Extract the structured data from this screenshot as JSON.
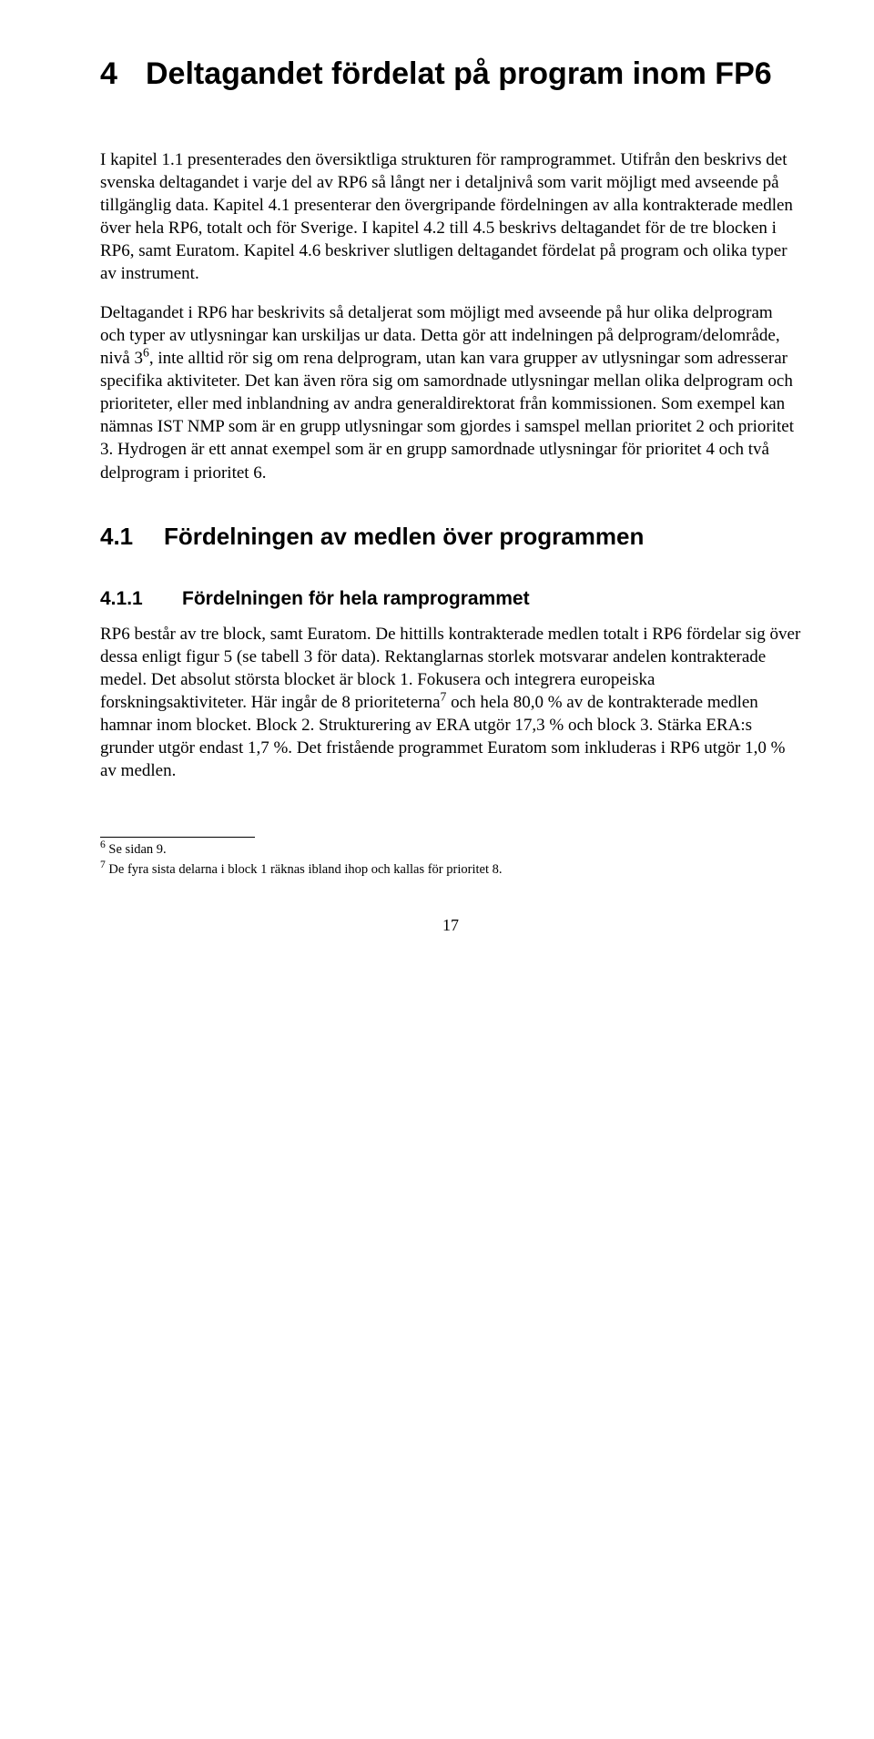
{
  "heading1": {
    "number": "4",
    "text": "Deltagandet fördelat på program inom FP6"
  },
  "paragraphs": {
    "p1": "I kapitel 1.1 presenterades den översiktliga strukturen för ramprogrammet. Utifrån den beskrivs det svenska deltagandet i varje del av RP6 så långt ner i detaljnivå som varit möjligt med avseende på tillgänglig data. Kapitel 4.1 presenterar den övergripande fördelningen av alla kontrakterade medlen över hela RP6, totalt och för Sverige. I kapitel 4.2 till 4.5 beskrivs deltagandet för de tre blocken i RP6, samt Euratom. Kapitel 4.6 beskriver slutligen deltagandet fördelat på program och olika typer av instrument.",
    "p2a": "Deltagandet i RP6 har beskrivits så detaljerat som möjligt med avseende på hur olika delprogram och typer av utlysningar kan urskiljas ur data. Detta gör att indelningen på delprogram/delområde, nivå 3",
    "p2b": ", inte alltid rör sig om rena delprogram, utan kan vara grupper av utlysningar som adresserar specifika aktiviteter. Det kan även röra sig om samordnade utlysningar mellan olika delprogram och prioriteter, eller med inblandning av andra generaldirektorat från kommissionen. Som exempel kan nämnas IST NMP som är en grupp utlysningar som gjordes i samspel mellan prioritet 2 och prioritet 3. Hydrogen är ett annat exempel som är en grupp samordnade utlysningar för prioritet 4 och två delprogram i prioritet 6.",
    "p3a": "RP6 består av tre block, samt Euratom. De hittills kontrakterade medlen totalt i RP6 fördelar sig över dessa enligt figur 5 (se tabell 3 för data). Rektanglarnas storlek motsvarar andelen kontrakterade medel. Det absolut största blocket är block 1. Fokusera och integrera europeiska forskningsaktiviteter. Här ingår de 8 prioriteterna",
    "p3b": " och hela 80,0 % av de kontrakterade medlen hamnar inom blocket. Block 2. Strukturering av ERA utgör 17,3 % och block 3. Stärka ERA:s grunder utgör endast 1,7 %. Det fristående programmet Euratom som inkluderas i RP6 utgör 1,0 % av medlen."
  },
  "super": {
    "s6": "6",
    "s7": "7"
  },
  "heading2": {
    "number": "4.1",
    "text": "Fördelningen av medlen över programmen"
  },
  "heading3": {
    "number": "4.1.1",
    "text": "Fördelningen för hela ramprogrammet"
  },
  "footnotes": {
    "f6num": "6",
    "f6text": " Se sidan 9.",
    "f7num": "7",
    "f7text": " De fyra sista delarna i block 1 räknas ibland ihop och kallas för prioritet 8."
  },
  "pageNumber": "17"
}
